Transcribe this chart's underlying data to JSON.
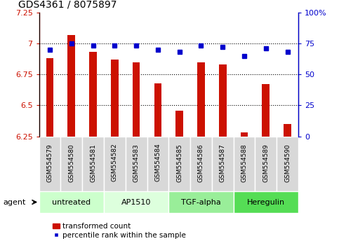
{
  "title": "GDS4361 / 8075897",
  "samples": [
    "GSM554579",
    "GSM554580",
    "GSM554581",
    "GSM554582",
    "GSM554583",
    "GSM554584",
    "GSM554585",
    "GSM554586",
    "GSM554587",
    "GSM554588",
    "GSM554589",
    "GSM554590"
  ],
  "bar_values": [
    6.88,
    7.07,
    6.93,
    6.87,
    6.85,
    6.68,
    6.46,
    6.85,
    6.83,
    6.28,
    6.67,
    6.35
  ],
  "percentile_values": [
    70,
    75,
    73,
    73,
    73,
    70,
    68,
    73,
    72,
    65,
    71,
    68
  ],
  "bar_color": "#cc1100",
  "marker_color": "#0000cc",
  "ylim_left": [
    6.25,
    7.25
  ],
  "ylim_right": [
    0,
    100
  ],
  "yticks_left": [
    6.25,
    6.5,
    6.75,
    7.0,
    7.25
  ],
  "ytick_labels_left": [
    "6.25",
    "6.5",
    "6.75",
    "7",
    "7.25"
  ],
  "yticks_right": [
    0,
    25,
    50,
    75,
    100
  ],
  "ytick_labels_right": [
    "0",
    "25",
    "50",
    "75",
    "100%"
  ],
  "grid_values": [
    6.5,
    6.75,
    7.0
  ],
  "groups": [
    {
      "label": "untreated",
      "start": 0,
      "end": 2,
      "color": "#ccffcc"
    },
    {
      "label": "AP1510",
      "start": 3,
      "end": 5,
      "color": "#ddffdd"
    },
    {
      "label": "TGF-alpha",
      "start": 6,
      "end": 8,
      "color": "#99ee99"
    },
    {
      "label": "Heregulin",
      "start": 9,
      "end": 11,
      "color": "#55dd55"
    }
  ],
  "agent_label": "agent",
  "legend_bar_label": "transformed count",
  "legend_marker_label": "percentile rank within the sample",
  "bar_color_legend": "#cc1100",
  "marker_color_legend": "#0000cc",
  "bar_width": 0.35
}
